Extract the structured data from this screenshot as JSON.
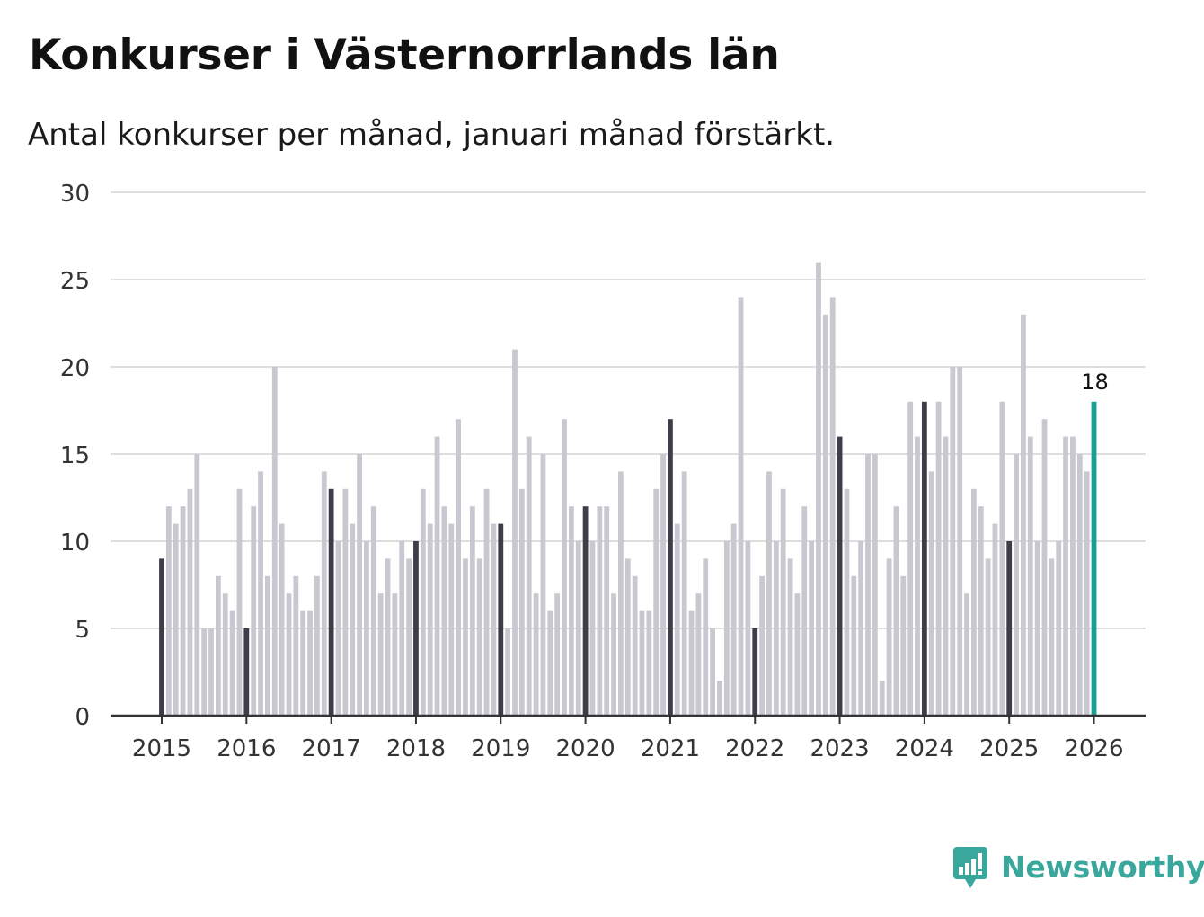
{
  "title": "Konkurser i Västernorrlands län",
  "subtitle": "Antal konkurser per månad, januari månad förstärkt.",
  "brand": {
    "name": "Newsworthy",
    "icon": "newsworthy-logo-icon"
  },
  "colors": {
    "bar": "#c9c8d0",
    "january_bar": "#3f3d4a",
    "latest_bar": "#1a9e94",
    "grid": "#dedede",
    "axis": "#333333",
    "brand": "#3aa79c"
  },
  "chart_data": {
    "type": "bar",
    "title": "Konkurser i Västernorrlands län",
    "subtitle": "Antal konkurser per månad, januari månad förstärkt.",
    "xlabel": "",
    "ylabel": "",
    "ylim": [
      0,
      30
    ],
    "yticks": [
      "0",
      "5",
      "10",
      "15",
      "20",
      "25",
      "30"
    ],
    "xticks": [
      "2015",
      "2016",
      "2017",
      "2018",
      "2019",
      "2020",
      "2021",
      "2022",
      "2023",
      "2024",
      "2025",
      "2026"
    ],
    "start": "2015-01",
    "grid": true,
    "highlight": "january",
    "latest_label": "18",
    "values": [
      9,
      12,
      11,
      12,
      13,
      15,
      5,
      5,
      8,
      7,
      6,
      13,
      5,
      12,
      14,
      8,
      20,
      11,
      7,
      8,
      6,
      6,
      8,
      14,
      13,
      10,
      13,
      11,
      15,
      10,
      12,
      7,
      9,
      7,
      10,
      9,
      10,
      13,
      11,
      16,
      12,
      11,
      17,
      9,
      12,
      9,
      13,
      11,
      11,
      5,
      21,
      13,
      16,
      7,
      15,
      6,
      7,
      17,
      12,
      10,
      12,
      10,
      12,
      12,
      7,
      14,
      9,
      8,
      6,
      6,
      13,
      15,
      17,
      11,
      14,
      6,
      7,
      9,
      5,
      2,
      10,
      11,
      24,
      10,
      5,
      8,
      14,
      10,
      13,
      9,
      7,
      12,
      10,
      26,
      23,
      24,
      16,
      13,
      8,
      10,
      15,
      15,
      2,
      9,
      12,
      8,
      18,
      16,
      18,
      14,
      18,
      16,
      20,
      20,
      7,
      13,
      12,
      9,
      11,
      18,
      10,
      15,
      23,
      16,
      10,
      17,
      9,
      10,
      16,
      16,
      15,
      14,
      18
    ]
  }
}
